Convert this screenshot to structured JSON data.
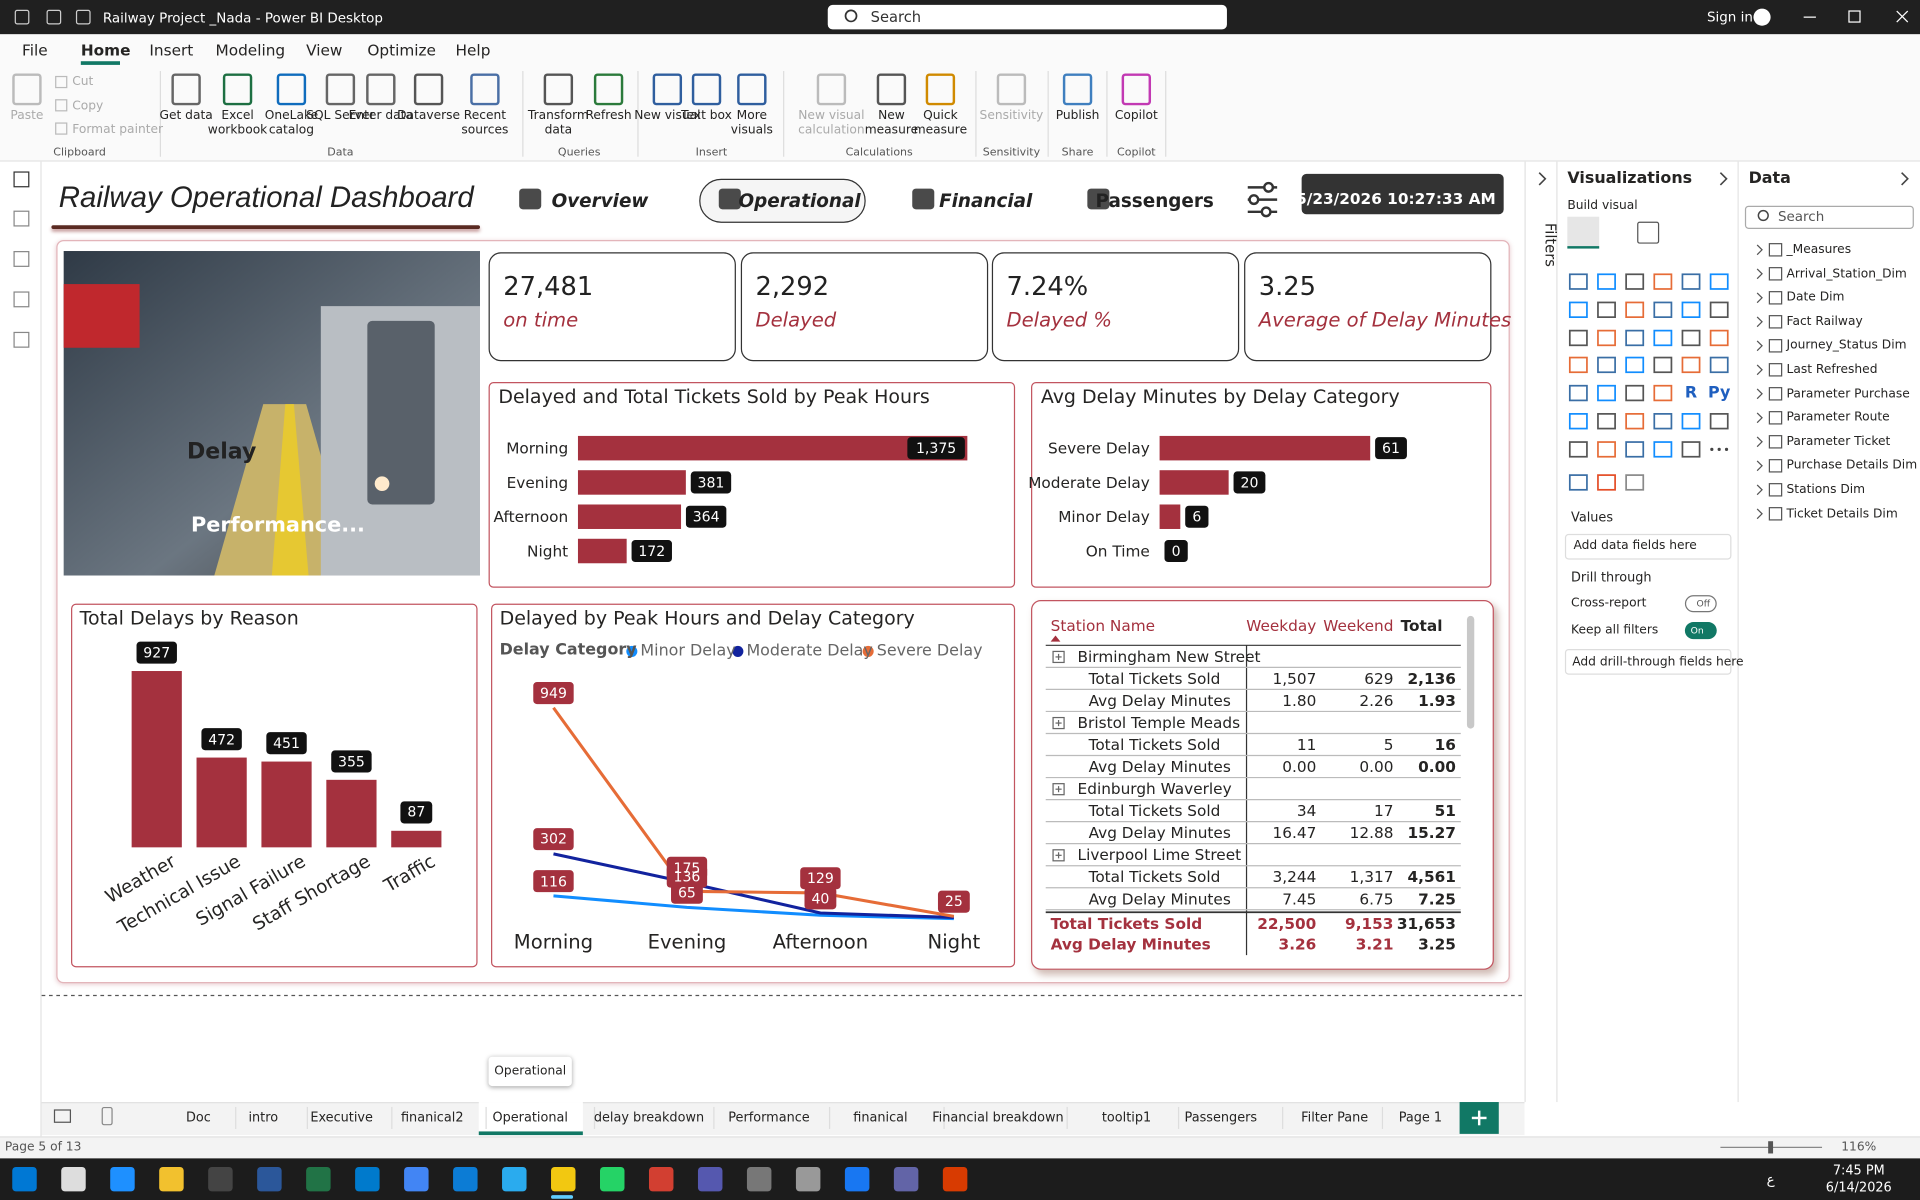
{
  "app": {
    "title": "Railway Project _Nada - Power BI Desktop",
    "search": "Search",
    "sign_in": "Sign in"
  },
  "ribbon": {
    "tabs": [
      "File",
      "Home",
      "Insert",
      "Modeling",
      "View",
      "Optimize",
      "Help"
    ],
    "clipboard": [
      "Cut",
      "Copy",
      "Format painter"
    ],
    "buttons": [
      "Paste",
      "Get data",
      "Excel workbook",
      "OneLake catalog",
      "SQL Server",
      "Enter data",
      "Dataverse",
      "Recent sources",
      "Transform data",
      "Refresh",
      "New visual",
      "Text box",
      "More visuals",
      "New visual calculation",
      "New measure",
      "Quick measure",
      "Sensitivity",
      "Publish",
      "Copilot"
    ],
    "groups": [
      "Clipboard",
      "Data",
      "Queries",
      "Insert",
      "Calculations",
      "Sensitivity",
      "Share",
      "Copilot"
    ]
  },
  "report": {
    "title": "Railway Operational Dashboard",
    "nav": [
      "Overview",
      "Operational",
      "Financial",
      "Passengers"
    ],
    "refreshed": "5/23/2026 10:27:33 AM",
    "image_labels": [
      "Delay",
      "Performance..."
    ],
    "kpis": [
      {
        "value": "27,481",
        "label": "on time"
      },
      {
        "value": "2,292",
        "label": "Delayed"
      },
      {
        "value": "7.24%",
        "label": "Delayed %"
      },
      {
        "value": "3.25",
        "label": "Average of Delay Minutes"
      }
    ],
    "tickets_by_peak": {
      "type": "bar",
      "title": "Delayed and Total Tickets Sold by Peak Hours",
      "categories": [
        "Morning",
        "Evening",
        "Afternoon",
        "Night"
      ],
      "values": [
        1375,
        381,
        364,
        172
      ],
      "value_labels": [
        "1,375",
        "381",
        "364",
        "172"
      ],
      "color": "#a4313e"
    },
    "delay_by_category": {
      "type": "bar",
      "title": "Avg Delay Minutes by Delay Category",
      "categories": [
        "Severe Delay",
        "Moderate Delay",
        "Minor Delay",
        "On Time"
      ],
      "values": [
        61,
        20,
        6,
        0
      ],
      "color": "#a4313e"
    },
    "delays_by_reason": {
      "type": "column",
      "title": "Total Delays by Reason",
      "categories": [
        "Weather",
        "Technical Issue",
        "Signal Failure",
        "Staff Shortage",
        "Traffic"
      ],
      "values": [
        927,
        472,
        451,
        355,
        87
      ],
      "color": "#a4313e"
    },
    "delay_by_peak_category": {
      "type": "line",
      "title": "Delayed by Peak Hours and Delay Category",
      "legend_title": "Delay Category",
      "categories": [
        "Morning",
        "Evening",
        "Afternoon",
        "Night"
      ],
      "series": [
        {
          "name": "Minor Delay",
          "color": "#118dff",
          "values": [
            116,
            65,
            30,
            15
          ],
          "value_labels": [
            "116",
            "65",
            null,
            null
          ]
        },
        {
          "name": "Moderate Delay",
          "color": "#12239e",
          "values": [
            302,
            175,
            40,
            20
          ],
          "value_labels": [
            "302",
            "175",
            "40",
            null
          ]
        },
        {
          "name": "Severe Delay",
          "color": "#e66c37",
          "values": [
            949,
            136,
            129,
            25
          ],
          "value_labels": [
            "949",
            "136",
            "129",
            "25"
          ]
        }
      ]
    },
    "matrix": {
      "headers": [
        "Station Name",
        "Weekday",
        "Weekend",
        "Total"
      ],
      "stations": [
        {
          "name": "Birmingham New Street",
          "rows": [
            [
              "Total Tickets Sold",
              "1,507",
              "629",
              "2,136"
            ],
            [
              "Avg Delay Minutes",
              "1.80",
              "2.26",
              "1.93"
            ]
          ]
        },
        {
          "name": "Bristol Temple Meads",
          "rows": [
            [
              "Total Tickets Sold",
              "11",
              "5",
              "16"
            ],
            [
              "Avg Delay Minutes",
              "0.00",
              "0.00",
              "0.00"
            ]
          ]
        },
        {
          "name": "Edinburgh Waverley",
          "rows": [
            [
              "Total Tickets Sold",
              "34",
              "17",
              "51"
            ],
            [
              "Avg Delay Minutes",
              "16.47",
              "12.88",
              "15.27"
            ]
          ]
        },
        {
          "name": "Liverpool Lime Street",
          "rows": [
            [
              "Total Tickets Sold",
              "3,244",
              "1,317",
              "4,561"
            ],
            [
              "Avg Delay Minutes",
              "7.45",
              "6.75",
              "7.25"
            ]
          ]
        }
      ],
      "totals": [
        [
          "Total Tickets Sold",
          "22,500",
          "9,153",
          "31,653"
        ],
        [
          "Avg Delay Minutes",
          "3.26",
          "3.21",
          "3.25"
        ]
      ]
    }
  },
  "filters": "Filters",
  "visualizations": {
    "title": "Visualizations",
    "build_visual": "Build visual",
    "script_visuals": [
      "R",
      "Py"
    ],
    "values": "Values",
    "add_fields": "Add data fields here",
    "drill_through": "Drill through",
    "cross_report": "Cross-report",
    "cross_report_state": "Off",
    "keep_filters": "Keep all filters",
    "keep_filters_state": "On",
    "add_drill": "Add drill-through fields here"
  },
  "data_pane": {
    "title": "Data",
    "search": "Search",
    "tables": [
      "_Measures",
      "Arrival_Station_Dim",
      "Date Dim",
      "Fact Railway",
      "Journey_Status Dim",
      "Last Refreshed",
      "Parameter Purchase",
      "Parameter Route",
      "Parameter Ticket",
      "Purchase Details Dim",
      "Stations Dim",
      "Ticket Details Dim"
    ]
  },
  "pages": {
    "tabs": [
      "Doc",
      "intro",
      "Executive",
      "finanical2",
      "Operational",
      "delay breakdown",
      "Performance",
      "finanical",
      "Financial breakdown",
      "tooltip1",
      "Passengers",
      "Filter Pane",
      "Page 1"
    ],
    "tooltip": "Operational",
    "status": "Page 5 of 13",
    "zoom": "116%"
  },
  "taskbar": {
    "language": "ع",
    "time": "7:45 PM",
    "date": "6/14/2026"
  }
}
